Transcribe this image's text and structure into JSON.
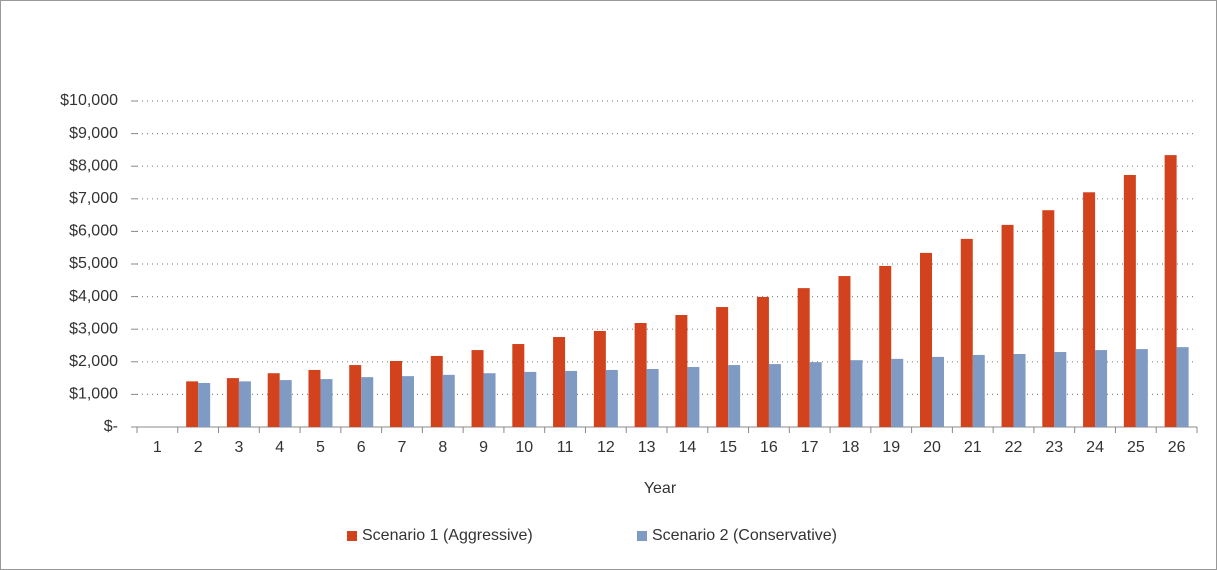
{
  "chart_data": {
    "type": "bar",
    "x_label": "Year",
    "categories": [
      "1",
      "2",
      "3",
      "4",
      "5",
      "6",
      "7",
      "8",
      "9",
      "10",
      "11",
      "12",
      "13",
      "14",
      "15",
      "16",
      "17",
      "18",
      "19",
      "20",
      "21",
      "22",
      "23",
      "24",
      "25",
      "26"
    ],
    "series": [
      {
        "name": "Scenario 1 (Aggressive)",
        "color": "#d2421d",
        "values": [
          null,
          1400,
          1500,
          1650,
          1750,
          1900,
          2025,
          2180,
          2360,
          2545,
          2760,
          2945,
          3190,
          3435,
          3680,
          3990,
          4260,
          4630,
          4940,
          5340,
          5770,
          6200,
          6650,
          7200,
          7730,
          8340
        ]
      },
      {
        "name": "Scenario 2 (Conservative)",
        "color": "#7f9bc4",
        "values": [
          null,
          1350,
          1400,
          1440,
          1470,
          1530,
          1560,
          1600,
          1650,
          1690,
          1720,
          1750,
          1780,
          1840,
          1900,
          1930,
          1990,
          2050,
          2090,
          2150,
          2210,
          2240,
          2300,
          2360,
          2390,
          2450
        ]
      }
    ],
    "ylim": [
      0,
      10000
    ],
    "yticks": [
      {
        "value": 0,
        "label": "$-"
      },
      {
        "value": 1000,
        "label": "$1,000"
      },
      {
        "value": 2000,
        "label": "$2,000"
      },
      {
        "value": 3000,
        "label": "$3,000"
      },
      {
        "value": 4000,
        "label": "$4,000"
      },
      {
        "value": 5000,
        "label": "$5,000"
      },
      {
        "value": 6000,
        "label": "$6,000"
      },
      {
        "value": 7000,
        "label": "$7,000"
      },
      {
        "value": 8000,
        "label": "$8,000"
      },
      {
        "value": 9000,
        "label": "$9,000"
      },
      {
        "value": 10000,
        "label": "$10,000"
      }
    ],
    "grid": true,
    "legend": "bottom"
  }
}
